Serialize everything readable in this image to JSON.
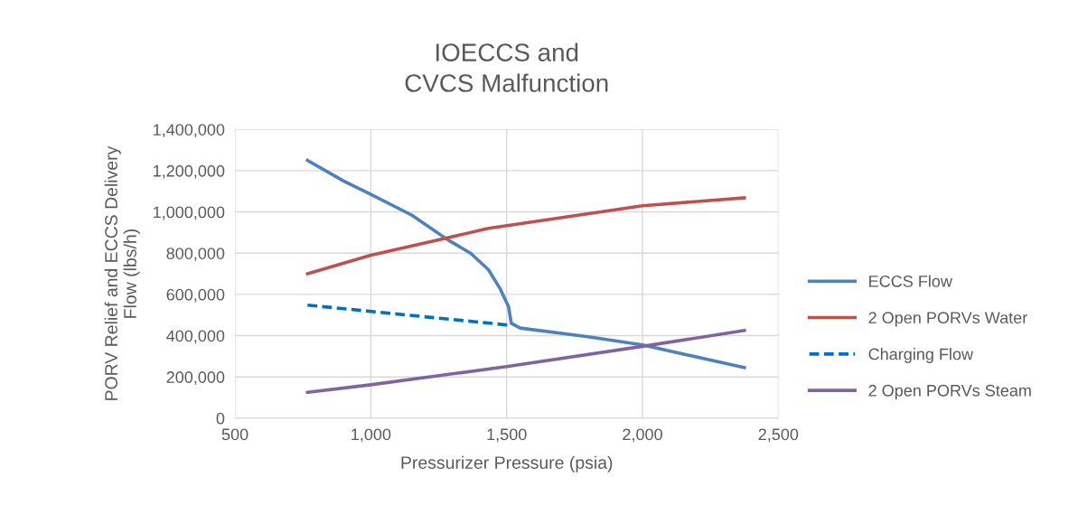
{
  "chart_data": {
    "type": "line",
    "title": "IOECCS and\nCVCS Malfunction",
    "xlabel": "Pressurizer Pressure (psia)",
    "ylabel": "PORV Relief and ECCS Delivery\nFlow (lbs/h)",
    "xlim": [
      500,
      2500
    ],
    "xticks": [
      500,
      {
        "value": 1000,
        "label": "1,000"
      },
      {
        "value": 1500,
        "label": "1,500"
      },
      {
        "value": 2000,
        "label": "2,000"
      },
      {
        "value": 2500,
        "label": "2,500"
      }
    ],
    "ylim": [
      0,
      1400000
    ],
    "yticks": [
      0,
      {
        "value": 200000,
        "label": "200,000"
      },
      {
        "value": 400000,
        "label": "400,000"
      },
      {
        "value": 600000,
        "label": "600,000"
      },
      {
        "value": 800000,
        "label": "800,000"
      },
      {
        "value": 1000000,
        "label": "1,000,000"
      },
      {
        "value": 1200000,
        "label": "1,200,000"
      },
      {
        "value": 1400000,
        "label": "1,400,000"
      }
    ],
    "grid": true,
    "legend": "right",
    "marker": "none",
    "series": [
      {
        "name": "ECCS Flow",
        "color": "#4f81bd",
        "line_style": "solid",
        "x": [
          767,
          900,
          1000,
          1150,
          1283,
          1367,
          1433,
          1477,
          1507,
          1517,
          1550,
          1800,
          2000,
          2375
        ],
        "values": [
          1250000,
          1150000,
          1085000,
          985000,
          865000,
          800000,
          720000,
          625000,
          540000,
          460000,
          437000,
          395000,
          355000,
          245000
        ]
      },
      {
        "name": "2 Open PORVs Water",
        "color": "#c0504d",
        "line_style": "solid",
        "x": [
          767,
          1000,
          1433,
          2000,
          2375
        ],
        "values": [
          700000,
          790000,
          920000,
          1030000,
          1068000
        ]
      },
      {
        "name": "Charging Flow",
        "color": "#0070c0",
        "line_style": "dashed",
        "x": [
          767,
          1517
        ],
        "values": [
          548000,
          450000
        ]
      },
      {
        "name": "2 Open PORVs Steam",
        "color": "#8064a2",
        "line_style": "solid",
        "x": [
          767,
          1000,
          1500,
          2000,
          2375
        ],
        "values": [
          125000,
          162000,
          250000,
          348000,
          425000
        ]
      }
    ]
  }
}
